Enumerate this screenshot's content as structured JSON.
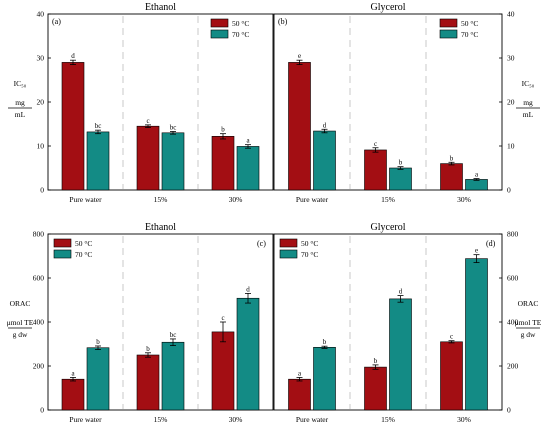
{
  "colors": {
    "t50": "#a30e13",
    "t70": "#138b85"
  },
  "chart_data": [
    {
      "id": "a",
      "type": "bar",
      "title": "Ethanol",
      "panel_label": "(a)",
      "categories": [
        "Pure water",
        "15%",
        "30%"
      ],
      "series": [
        {
          "name": "50 °C",
          "values": [
            29.0,
            14.5,
            12.2
          ],
          "errors": [
            0.5,
            0.3,
            0.6
          ],
          "letters": [
            "d",
            "c",
            "b"
          ]
        },
        {
          "name": "70 °C",
          "values": [
            13.2,
            13.0,
            9.9
          ],
          "errors": [
            0.4,
            0.3,
            0.4
          ],
          "letters": [
            "bc",
            "bc",
            "a"
          ]
        }
      ],
      "ylim": [
        0,
        40
      ],
      "yticks": [
        0,
        10,
        20,
        30,
        40
      ],
      "y_axis_side": "left",
      "ylabel_lines": [
        "IC₅₀",
        "mg",
        "mL"
      ],
      "legend": "top-right"
    },
    {
      "id": "b",
      "type": "bar",
      "title": "Glycerol",
      "panel_label": "(b)",
      "categories": [
        "Pure water",
        "15%",
        "30%"
      ],
      "series": [
        {
          "name": "50 °C",
          "values": [
            29.0,
            9.1,
            6.0
          ],
          "errors": [
            0.5,
            0.5,
            0.3
          ],
          "letters": [
            "e",
            "c",
            "b"
          ]
        },
        {
          "name": "70 °C",
          "values": [
            13.4,
            5.0,
            2.4
          ],
          "errors": [
            0.4,
            0.3,
            0.2
          ],
          "letters": [
            "d",
            "b",
            "a"
          ]
        }
      ],
      "ylim": [
        0,
        40
      ],
      "yticks": [
        0,
        10,
        20,
        30,
        40
      ],
      "y_axis_side": "right",
      "ylabel_lines": [
        "IC₅₀",
        "mg",
        "mL"
      ],
      "legend": "top-right"
    },
    {
      "id": "c",
      "type": "bar",
      "title": "Ethanol",
      "panel_label": "(c)",
      "categories": [
        "Pure water",
        "15%",
        "30%"
      ],
      "series": [
        {
          "name": "50 °C",
          "values": [
            140,
            250,
            355
          ],
          "errors": [
            8,
            10,
            45
          ],
          "letters": [
            "a",
            "b",
            "c"
          ]
        },
        {
          "name": "70 °C",
          "values": [
            283,
            308,
            508
          ],
          "errors": [
            8,
            15,
            22
          ],
          "letters": [
            "b",
            "bc",
            "d"
          ]
        }
      ],
      "ylim": [
        0,
        800
      ],
      "yticks": [
        0,
        200,
        400,
        600,
        800
      ],
      "y_axis_side": "left",
      "ylabel_lines": [
        "ORAC",
        "μmol TE",
        "g dw"
      ],
      "legend": "top-left"
    },
    {
      "id": "d",
      "type": "bar",
      "title": "Glycerol",
      "panel_label": "(d)",
      "categories": [
        "Pure water",
        "15%",
        "30%"
      ],
      "series": [
        {
          "name": "50 °C",
          "values": [
            140,
            195,
            310
          ],
          "errors": [
            8,
            10,
            5
          ],
          "letters": [
            "a",
            "b",
            "c"
          ]
        },
        {
          "name": "70 °C",
          "values": [
            285,
            505,
            688
          ],
          "errors": [
            5,
            15,
            18
          ],
          "letters": [
            "b",
            "d",
            "e"
          ]
        }
      ],
      "ylim": [
        0,
        800
      ],
      "yticks": [
        0,
        200,
        400,
        600,
        800
      ],
      "y_axis_side": "right",
      "ylabel_lines": [
        "ORAC",
        "μmol TE",
        "g dw"
      ],
      "legend": "top-left"
    }
  ]
}
